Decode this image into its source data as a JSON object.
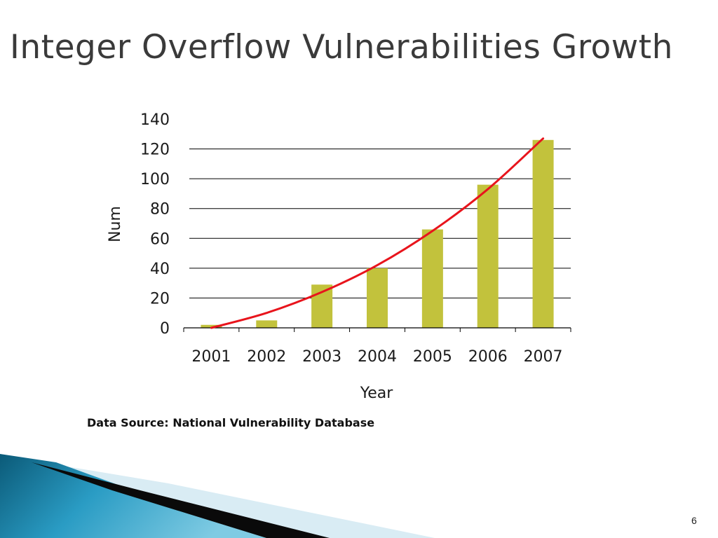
{
  "slide": {
    "title": "Integer Overflow Vulnerabilities Growth",
    "source_note": "Data Source: National Vulnerability Database",
    "page_number": "6"
  },
  "colors": {
    "bar": "#c2c23c",
    "trend_line": "#e8141c",
    "grid": "#000000"
  },
  "chart_data": {
    "type": "bar",
    "categories": [
      "2001",
      "2002",
      "2003",
      "2004",
      "2005",
      "2006",
      "2007"
    ],
    "values": [
      2,
      5,
      29,
      40,
      66,
      96,
      126
    ],
    "trend": {
      "type": "line",
      "x": [
        "2001",
        "2002",
        "2003",
        "2004",
        "2005",
        "2006",
        "2007"
      ],
      "y": [
        0,
        10,
        24,
        42,
        65,
        93,
        127
      ]
    },
    "xlabel": "Year",
    "ylabel": "Num",
    "ylim": [
      0,
      140
    ],
    "yticks": [
      0,
      20,
      40,
      60,
      80,
      100,
      120,
      140
    ],
    "grid": true
  }
}
